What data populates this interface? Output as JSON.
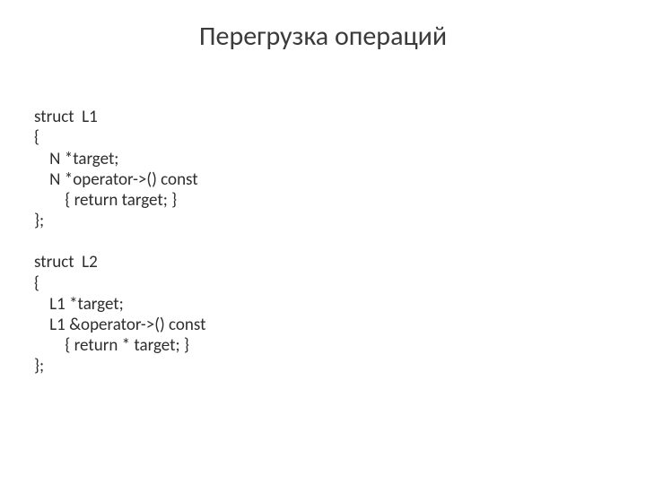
{
  "title": "Перегрузка операций",
  "code": {
    "l1_decl": "struct  L1",
    "l1_open": "{",
    "l1_target": "    N *target;",
    "l1_op": "    N *operator->() const",
    "l1_body": "        { return target; }",
    "l1_close": "};",
    "blank": "",
    "l2_decl": "struct  L2",
    "l2_open": "{",
    "l2_target": "    L1 *target;",
    "l2_op": "    L1 &operator->() const",
    "l2_body": "        { return * target; }",
    "l2_close": "};"
  },
  "colors": {
    "background": "#ffffff",
    "title_text": "#3b3b3b",
    "code_text": "#2e2e2e"
  },
  "fonts": {
    "title_size_pt": 30,
    "code_size_pt": 19,
    "family": "Calibri"
  }
}
